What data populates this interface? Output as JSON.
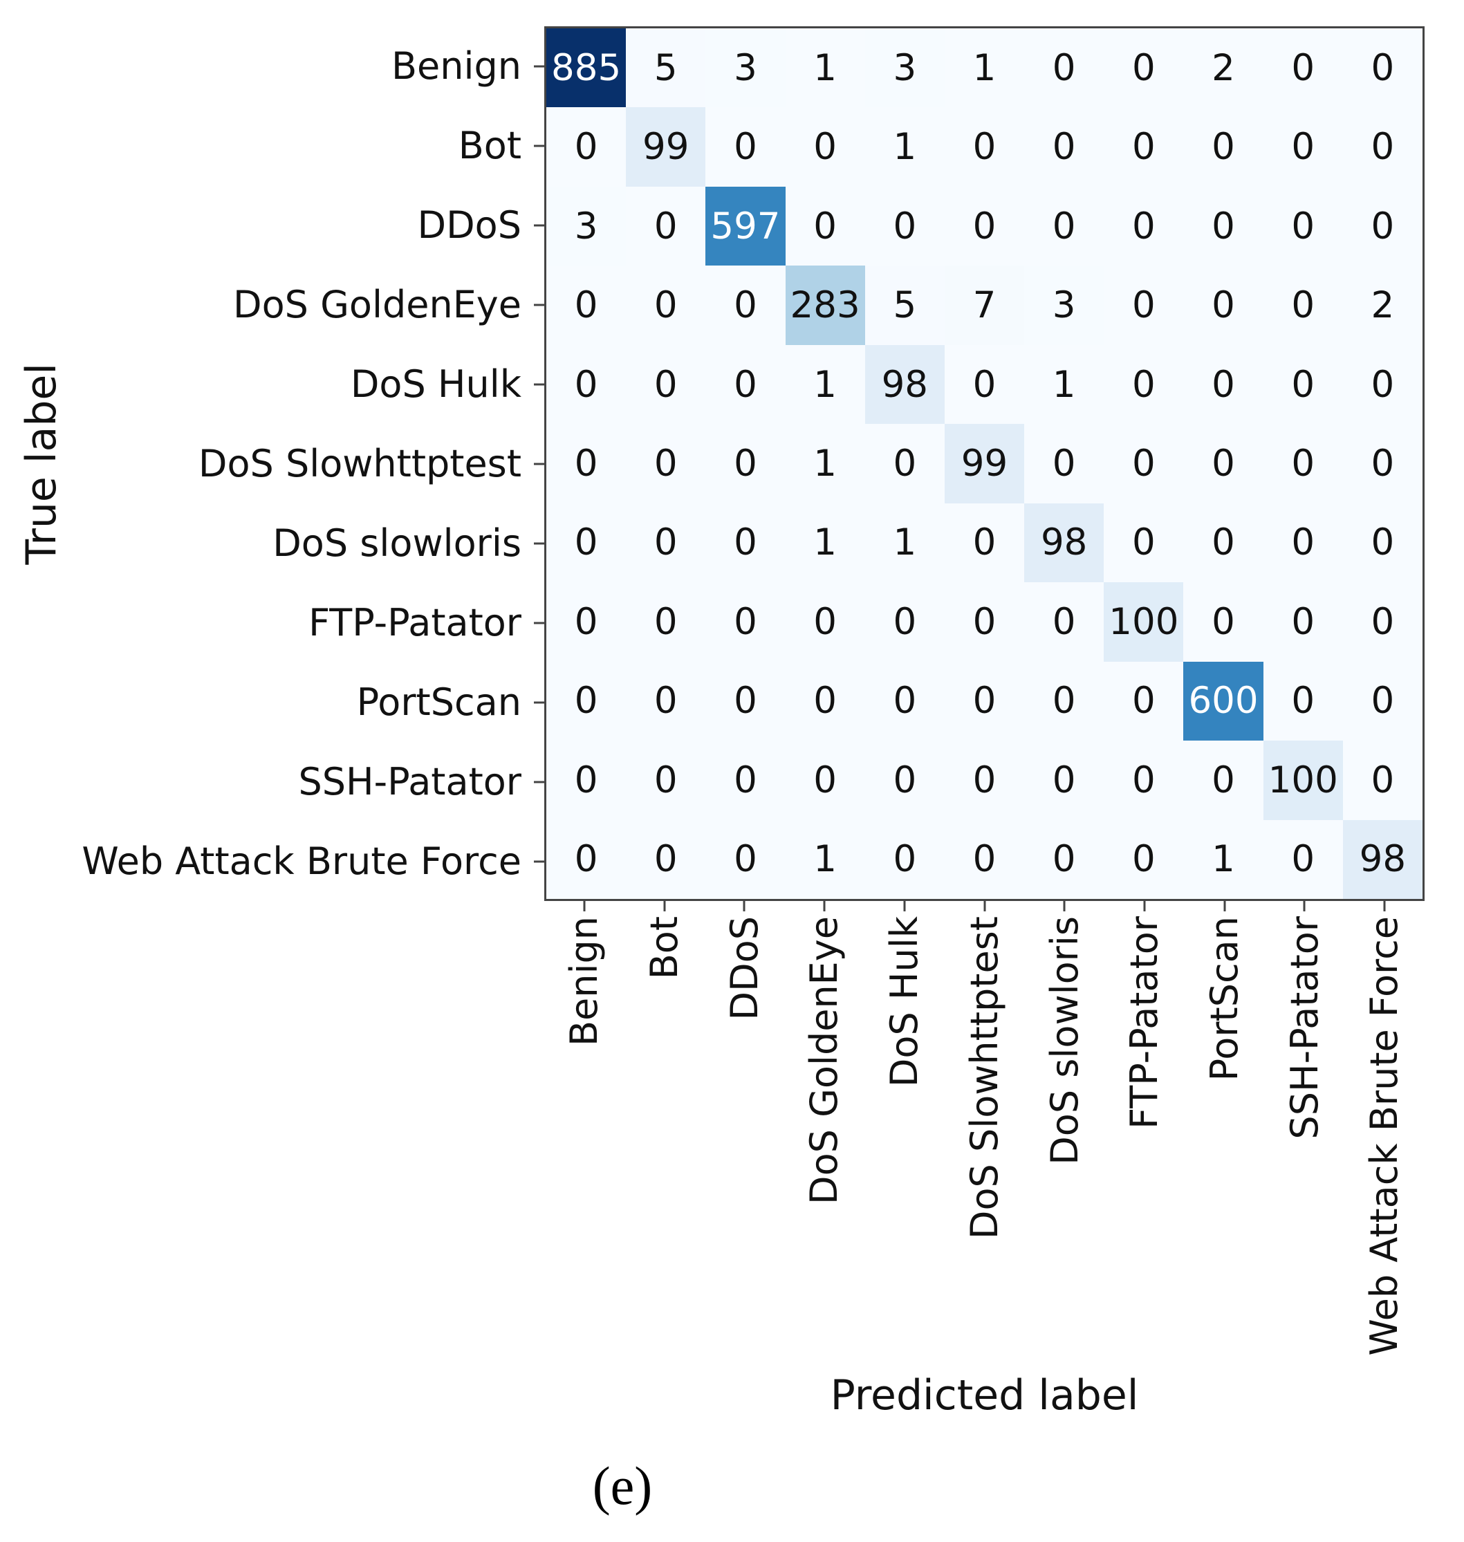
{
  "figure": {
    "caption": "(e)",
    "xlabel": "Predicted label",
    "ylabel": "True label"
  },
  "chart_data": {
    "type": "heatmap",
    "title": "",
    "xlabel": "Predicted label",
    "ylabel": "True label",
    "legend": "none",
    "grid": false,
    "x_tick_labels": [
      "Benign",
      "Bot",
      "DDoS",
      "DoS GoldenEye",
      "DoS Hulk",
      "DoS Slowhttptest",
      "DoS slowloris",
      "FTP-Patator",
      "PortScan",
      "SSH-Patator",
      "Web Attack Brute Force"
    ],
    "y_tick_labels": [
      "Benign",
      "Bot",
      "DDoS",
      "DoS GoldenEye",
      "DoS Hulk",
      "DoS Slowhttptest",
      "DoS slowloris",
      "FTP-Patator",
      "PortScan",
      "SSH-Patator",
      "Web Attack Brute Force"
    ],
    "matrix": [
      [
        885,
        5,
        3,
        1,
        3,
        1,
        0,
        0,
        2,
        0,
        0
      ],
      [
        0,
        99,
        0,
        0,
        1,
        0,
        0,
        0,
        0,
        0,
        0
      ],
      [
        3,
        0,
        597,
        0,
        0,
        0,
        0,
        0,
        0,
        0,
        0
      ],
      [
        0,
        0,
        0,
        283,
        5,
        7,
        3,
        0,
        0,
        0,
        2
      ],
      [
        0,
        0,
        0,
        1,
        98,
        0,
        1,
        0,
        0,
        0,
        0
      ],
      [
        0,
        0,
        0,
        1,
        0,
        99,
        0,
        0,
        0,
        0,
        0
      ],
      [
        0,
        0,
        0,
        1,
        1,
        0,
        98,
        0,
        0,
        0,
        0
      ],
      [
        0,
        0,
        0,
        0,
        0,
        0,
        0,
        100,
        0,
        0,
        0
      ],
      [
        0,
        0,
        0,
        0,
        0,
        0,
        0,
        0,
        600,
        0,
        0
      ],
      [
        0,
        0,
        0,
        0,
        0,
        0,
        0,
        0,
        0,
        100,
        0
      ],
      [
        0,
        0,
        0,
        1,
        0,
        0,
        0,
        0,
        1,
        0,
        98
      ]
    ],
    "vmin": 0,
    "vmax": 885,
    "colormap": "Blues",
    "colormap_stops": [
      "#f7fbff",
      "#deebf7",
      "#c6dbef",
      "#9ecae1",
      "#6baed6",
      "#4292c6",
      "#2171b5",
      "#08519c",
      "#08306b"
    ],
    "colors": {
      "zero_cell": "#f7fbff",
      "max_cell": "#08306b",
      "spine": "#444444",
      "cell_text_dark": "#111111",
      "cell_text_light": "#ffffff",
      "label_text": "#111111"
    }
  }
}
